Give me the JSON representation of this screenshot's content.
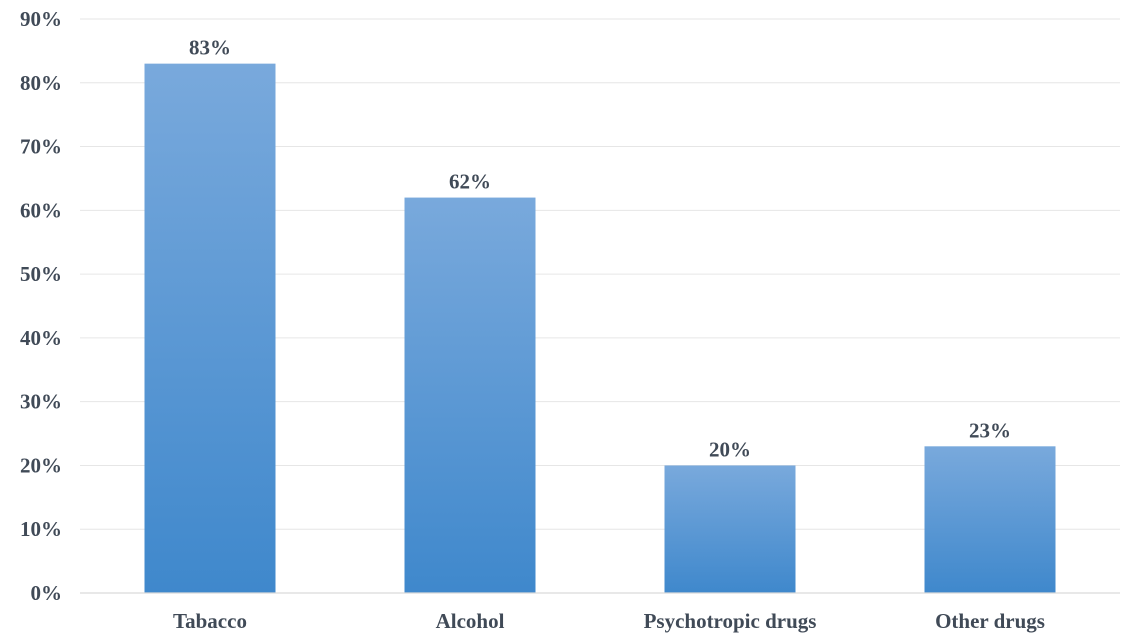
{
  "chart_data": {
    "type": "bar",
    "title": "",
    "xlabel": "",
    "ylabel": "",
    "categories": [
      "Tabacco",
      "Alcohol",
      "Psychotropic drugs",
      "Other drugs"
    ],
    "values": [
      83,
      62,
      20,
      23
    ],
    "value_labels": [
      "83%",
      "62%",
      "20%",
      "23%"
    ],
    "ylim": [
      0,
      90
    ],
    "yticks": [
      0,
      10,
      20,
      30,
      40,
      50,
      60,
      70,
      80,
      90
    ],
    "ytick_labels": [
      "0%",
      "10%",
      "20%",
      "30%",
      "40%",
      "50%",
      "60%",
      "70%",
      "80%",
      "90%"
    ],
    "grid": true,
    "legend": "none",
    "colors": {
      "bar_top": "#79a9dc",
      "bar_bottom": "#3f88cc",
      "text": "#404a57",
      "grid": "#e6e6e6"
    }
  }
}
